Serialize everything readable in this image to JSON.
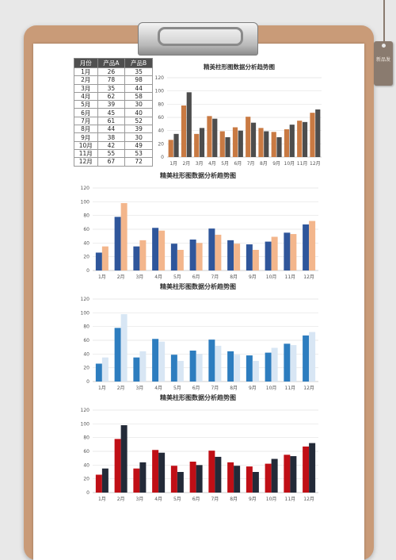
{
  "table": {
    "headers": [
      "月份",
      "产品A",
      "产品B"
    ],
    "rows": [
      [
        "1月",
        "26",
        "35"
      ],
      [
        "2月",
        "78",
        "98"
      ],
      [
        "3月",
        "35",
        "44"
      ],
      [
        "4月",
        "62",
        "58"
      ],
      [
        "5月",
        "39",
        "30"
      ],
      [
        "6月",
        "45",
        "40"
      ],
      [
        "7月",
        "61",
        "52"
      ],
      [
        "8月",
        "44",
        "39"
      ],
      [
        "9月",
        "38",
        "30"
      ],
      [
        "10月",
        "42",
        "49"
      ],
      [
        "11月",
        "55",
        "53"
      ],
      [
        "12月",
        "67",
        "72"
      ]
    ]
  },
  "tag_text": "新品发",
  "colors": {
    "chart1": [
      "#c97a43",
      "#4d4d4d"
    ],
    "chart2": [
      "#2f569b",
      "#f3b68c"
    ],
    "chart3": [
      "#2d7dbf",
      "#d8e6f4"
    ],
    "chart4": [
      "#c00f16",
      "#232a38"
    ]
  },
  "chart_data": [
    {
      "type": "bar",
      "title": "精美柱形图数据分析趋势图",
      "categories": [
        "1月",
        "2月",
        "3月",
        "4月",
        "5月",
        "6月",
        "7月",
        "8月",
        "9月",
        "10月",
        "11月",
        "12月"
      ],
      "series": [
        {
          "name": "产品A",
          "values": [
            26,
            78,
            35,
            62,
            39,
            45,
            61,
            44,
            38,
            42,
            55,
            67
          ]
        },
        {
          "name": "产品B",
          "values": [
            35,
            98,
            44,
            58,
            30,
            40,
            52,
            39,
            30,
            49,
            53,
            72
          ]
        }
      ],
      "ylim": [
        0,
        120
      ],
      "yticks": [
        0,
        20,
        40,
        60,
        80,
        100,
        120
      ],
      "grid": true
    },
    {
      "type": "bar",
      "title": "精美柱形图数据分析趋势图",
      "categories": [
        "1月",
        "2月",
        "3月",
        "4月",
        "5月",
        "6月",
        "7月",
        "8月",
        "9月",
        "10月",
        "11月",
        "12月"
      ],
      "series": [
        {
          "name": "产品A",
          "values": [
            26,
            78,
            35,
            62,
            39,
            45,
            61,
            44,
            38,
            42,
            55,
            67
          ]
        },
        {
          "name": "产品B",
          "values": [
            35,
            98,
            44,
            58,
            30,
            40,
            52,
            39,
            30,
            49,
            53,
            72
          ]
        }
      ],
      "ylim": [
        0,
        120
      ],
      "yticks": [
        0,
        20,
        40,
        60,
        80,
        100,
        120
      ],
      "grid": true
    },
    {
      "type": "bar",
      "title": "精美柱形图数据分析趋势图",
      "categories": [
        "1月",
        "2月",
        "3月",
        "4月",
        "5月",
        "6月",
        "7月",
        "8月",
        "9月",
        "10月",
        "11月",
        "12月"
      ],
      "series": [
        {
          "name": "产品A",
          "values": [
            26,
            78,
            35,
            62,
            39,
            45,
            61,
            44,
            38,
            42,
            55,
            67
          ]
        },
        {
          "name": "产品B",
          "values": [
            35,
            98,
            44,
            58,
            30,
            40,
            52,
            39,
            30,
            49,
            53,
            72
          ]
        }
      ],
      "ylim": [
        0,
        120
      ],
      "yticks": [
        0,
        20,
        40,
        60,
        80,
        100,
        120
      ],
      "grid": true
    },
    {
      "type": "bar",
      "title": "精美柱形图数据分析趋势图",
      "categories": [
        "1月",
        "2月",
        "3月",
        "4月",
        "5月",
        "6月",
        "7月",
        "8月",
        "9月",
        "10月",
        "11月",
        "12月"
      ],
      "series": [
        {
          "name": "产品A",
          "values": [
            26,
            78,
            35,
            62,
            39,
            45,
            61,
            44,
            38,
            42,
            55,
            67
          ]
        },
        {
          "name": "产品B",
          "values": [
            35,
            98,
            44,
            58,
            30,
            40,
            52,
            39,
            30,
            49,
            53,
            72
          ]
        }
      ],
      "ylim": [
        0,
        120
      ],
      "yticks": [
        0,
        20,
        40,
        60,
        80,
        100,
        120
      ],
      "grid": true
    }
  ]
}
